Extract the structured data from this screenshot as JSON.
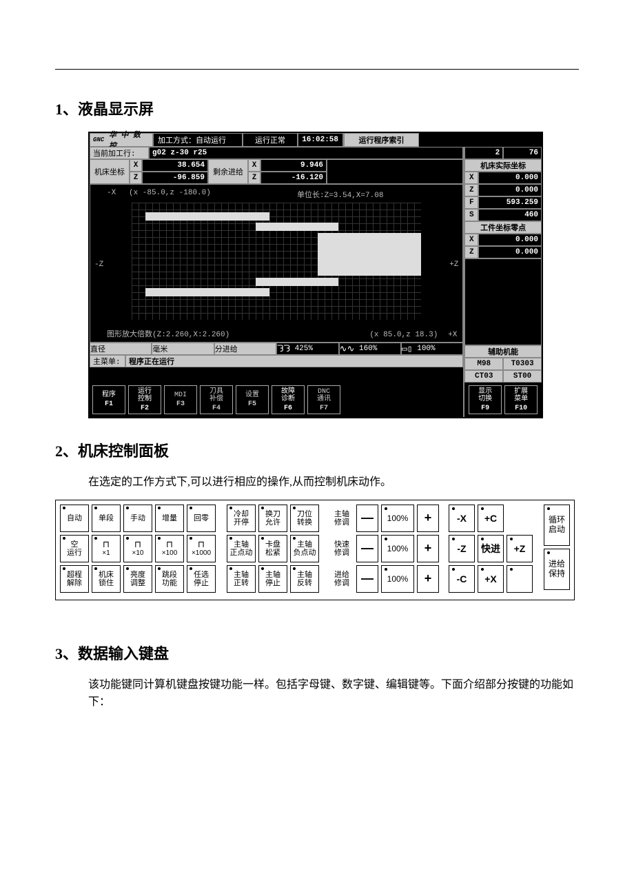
{
  "section1_title": "1、液晶显示屏",
  "section2_title": "2、机床控制面板",
  "section2_desc": "在选定的工作方式下,可以进行相应的操作,从而控制机床动作。",
  "section3_title": "3、数据输入键盘",
  "section3_desc": "该功能键同计算机键盘按键功能一样。包括字母键、数字键、编辑键等。下面介绍部分按键的功能如下：",
  "lcd": {
    "logo": "华 中 数 控",
    "mode_label": "加工方式：",
    "mode_value": "自动运行",
    "status": "运行正常",
    "time": "16:02:58",
    "prog_index_label": "运行程序索引",
    "prog_index_a": "2",
    "prog_index_b": "76",
    "curline_label": "当前加工行:",
    "curline_value": "g02 z-30 r25",
    "machine_coord_label": "机床坐标",
    "remain_feed_label": "剩余进给",
    "mc": {
      "x": "38.654",
      "z": "-96.859"
    },
    "rf": {
      "x": "9.946",
      "z": "-16.120"
    },
    "real_coord_label": "机床实际坐标",
    "real": {
      "x": "0.000",
      "z": "0.000",
      "f": "593.259",
      "s": "460"
    },
    "wp_zero_label": "工件坐标零点",
    "wp": {
      "x": "0.000",
      "z": "0.000"
    },
    "plot": {
      "nx": "-X",
      "pz": "+Z",
      "nz": "-Z",
      "px": "+X",
      "range": "(x  -85.0,z -180.0)",
      "unit": "单位长:Z=3.54,X=7.08",
      "scale": "图形放大倍数(Z:2.260,X:2.260)",
      "cursor": "(x   85.0,z   18.3)"
    },
    "modebar": {
      "diam": "直径",
      "mm": "毫米",
      "feed": "分进给",
      "r1": "425%",
      "r2": "160%",
      "r3": "100%"
    },
    "menu_label": "主菜单:",
    "menu_value": "程序正在运行",
    "aux_label": "辅助机能",
    "aux": {
      "m": "M98",
      "t": "T0303",
      "c": "CT03",
      "s": "ST00"
    },
    "fkeys": [
      {
        "l1": "程序",
        "l2": "",
        "fn": "F1",
        "on": true
      },
      {
        "l1": "运行",
        "l2": "控制",
        "fn": "F2",
        "on": true
      },
      {
        "l1": "MDI",
        "l2": "",
        "fn": "F3",
        "on": false
      },
      {
        "l1": "刀具",
        "l2": "补偿",
        "fn": "F4",
        "on": false
      },
      {
        "l1": "设置",
        "l2": "",
        "fn": "F5",
        "on": false
      },
      {
        "l1": "故障",
        "l2": "诊断",
        "fn": "F6",
        "on": true
      },
      {
        "l1": "DNC",
        "l2": "通讯",
        "fn": "F7",
        "on": false
      }
    ],
    "fkeys_r": [
      {
        "l1": "显示",
        "l2": "切换",
        "fn": "F9",
        "on": true
      },
      {
        "l1": "扩展",
        "l2": "菜单",
        "fn": "F10",
        "on": true
      }
    ]
  },
  "panel": {
    "row1": {
      "left": [
        "自动",
        "单段",
        "手动",
        "增量",
        "回零"
      ],
      "mid": [
        "冷却\n开停",
        "换刀\n允许",
        "刀位\n转换"
      ],
      "ratelabel": "主轴\n修调",
      "pct": "100%",
      "jog": [
        "-X",
        "+C"
      ]
    },
    "row2": {
      "left": [
        "空\n运行",
        "×1",
        "×10",
        "×100",
        "×1000"
      ],
      "wave": true,
      "mid": [
        "主轴\n正点动",
        "卡盘\n松紧",
        "主轴\n负点动"
      ],
      "ratelabel": "快速\n修调",
      "pct": "100%",
      "jog": [
        "-Z",
        "快进",
        "+Z"
      ]
    },
    "row3": {
      "left": [
        "超程\n解除",
        "机床\n锁住",
        "亮度\n调整",
        "跳段\n功能",
        "任选\n停止"
      ],
      "mid": [
        "主轴\n正转",
        "主轴\n停止",
        "主轴\n反转"
      ],
      "ratelabel": "进给\n修调",
      "pct": "100%",
      "jog": [
        "-C",
        "+X",
        ""
      ]
    },
    "side_top": "循环\n启动",
    "side_bot": "进给\n保持"
  }
}
